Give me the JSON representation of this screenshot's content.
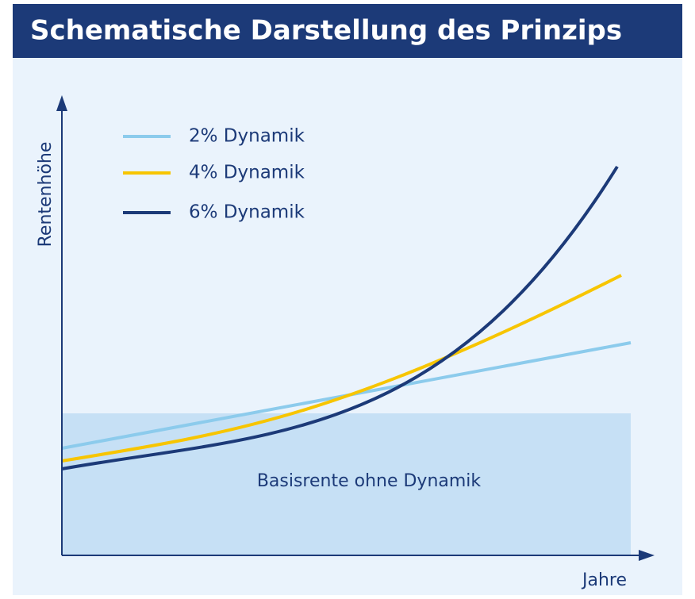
{
  "header": {
    "title": "Schematische Darstellung des Prinzips"
  },
  "axes": {
    "y_label": "Rentenhöhe",
    "x_label": "Jahre"
  },
  "legend": {
    "items": [
      "2% Dynamik",
      "4% Dynamik",
      "6% Dynamik"
    ]
  },
  "base_area": {
    "label": "Basisrente ohne Dynamik"
  }
}
